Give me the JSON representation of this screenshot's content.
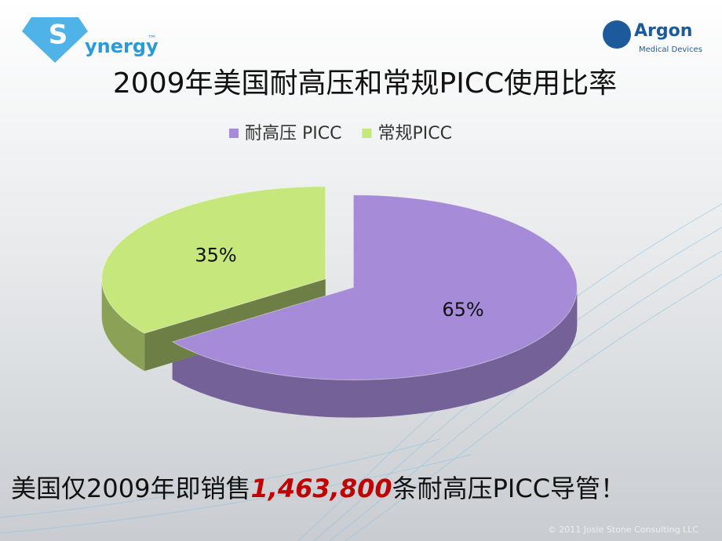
{
  "logo_left": {
    "text": "ynergy",
    "mark": "™"
  },
  "logo_right": {
    "name": "Argon",
    "sub": "Medical Devices"
  },
  "chart_data": {
    "type": "pie",
    "title": "2009年美国耐高压和常规PICC使用比率",
    "categories": [
      "耐高压 PICC",
      "常规PICC"
    ],
    "values": [
      65,
      35
    ],
    "value_labels": [
      "65%",
      "35%"
    ],
    "colors": [
      "#a58bd8",
      "#c6e77c"
    ],
    "legend": "top"
  },
  "footer": {
    "before": "美国仅2009年即销售",
    "number": "1,463,800",
    "after": "条耐高压PICC导管！"
  },
  "copyright": "© 2011 Josie Stone Consulting LLC"
}
